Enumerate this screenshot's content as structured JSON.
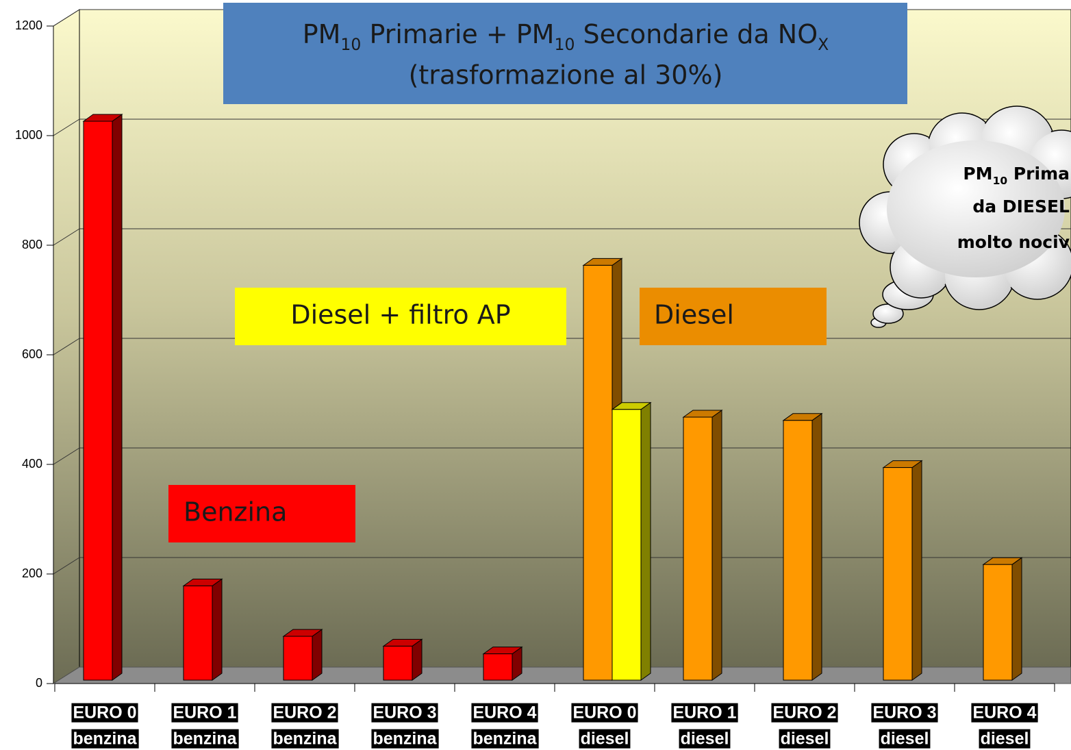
{
  "chart_data": {
    "type": "bar3d",
    "title": [
      [
        "PM",
        "10",
        " Primarie + PM",
        "10",
        " Secondarie da NO",
        "X"
      ],
      "(trasformazione al 30%)"
    ],
    "annotation": [
      [
        "PM",
        "10",
        " Prima"
      ],
      "da DIESEL",
      "molto nociv"
    ],
    "categories": [
      [
        "EURO 0",
        "benzina"
      ],
      [
        "EURO 1",
        "benzina"
      ],
      [
        "EURO 2",
        "benzina"
      ],
      [
        "EURO 3",
        "benzina"
      ],
      [
        "EURO 4",
        "benzina"
      ],
      [
        "EURO 0",
        "diesel"
      ],
      [
        "EURO 1",
        "diesel"
      ],
      [
        "EURO 2",
        "diesel"
      ],
      [
        "EURO 3",
        "diesel"
      ],
      [
        "EURO 4",
        "diesel"
      ]
    ],
    "series": [
      {
        "name": "Benzina",
        "color": "#ff0000",
        "values": [
          1020,
          172,
          80,
          62,
          48,
          null,
          null,
          null,
          null,
          null
        ]
      },
      {
        "name": "Diesel",
        "color": "#ff9900",
        "values": [
          null,
          null,
          null,
          null,
          null,
          757,
          480,
          474,
          388,
          211
        ]
      },
      {
        "name": "Diesel + filtro AP",
        "color": "#ffff00",
        "values": [
          null,
          null,
          null,
          null,
          null,
          494,
          null,
          null,
          null,
          null
        ]
      }
    ],
    "ylim": [
      0,
      1200
    ],
    "yticks": [
      0,
      200,
      400,
      600,
      800,
      1000,
      1200
    ],
    "grid": true
  }
}
